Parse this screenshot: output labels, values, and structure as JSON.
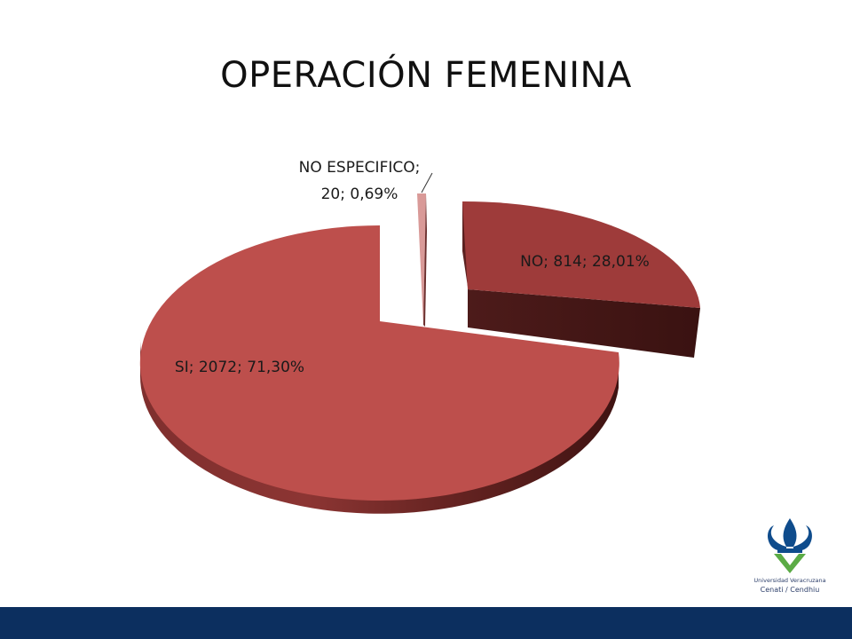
{
  "title": "OPERACIÓN FEMENINA",
  "chart_data": {
    "type": "pie",
    "style": "3d-exploded",
    "title": "OPERACIÓN FEMENINA",
    "slices": [
      {
        "label": "NO",
        "value": 814,
        "percent": "28,01%",
        "text": "NO; 814; 28,01%",
        "color_top": "#9e3b3a",
        "color_side": "#4a1a19"
      },
      {
        "label": "NO ESPECIFICO",
        "value": 20,
        "percent": "0,69%",
        "text_line1": "NO ESPECIFICO;",
        "text_line2": "20; 0,69%",
        "color_top": "#d99a98",
        "color_side": "#6b2e2d"
      },
      {
        "label": "SI",
        "value": 2072,
        "percent": "71,30%",
        "text": "SI; 2072; 71,30%",
        "color_top": "#bd4f4c",
        "color_side": "#6a2524"
      }
    ],
    "legend": "none"
  },
  "logo": {
    "name_line": "Universidad Veracruzana",
    "sub_line": "Cenati / Cendhiu",
    "color_primary": "#0f4c8c",
    "color_secondary": "#5bab45"
  },
  "footer": {
    "color": "#0c2f5f"
  }
}
